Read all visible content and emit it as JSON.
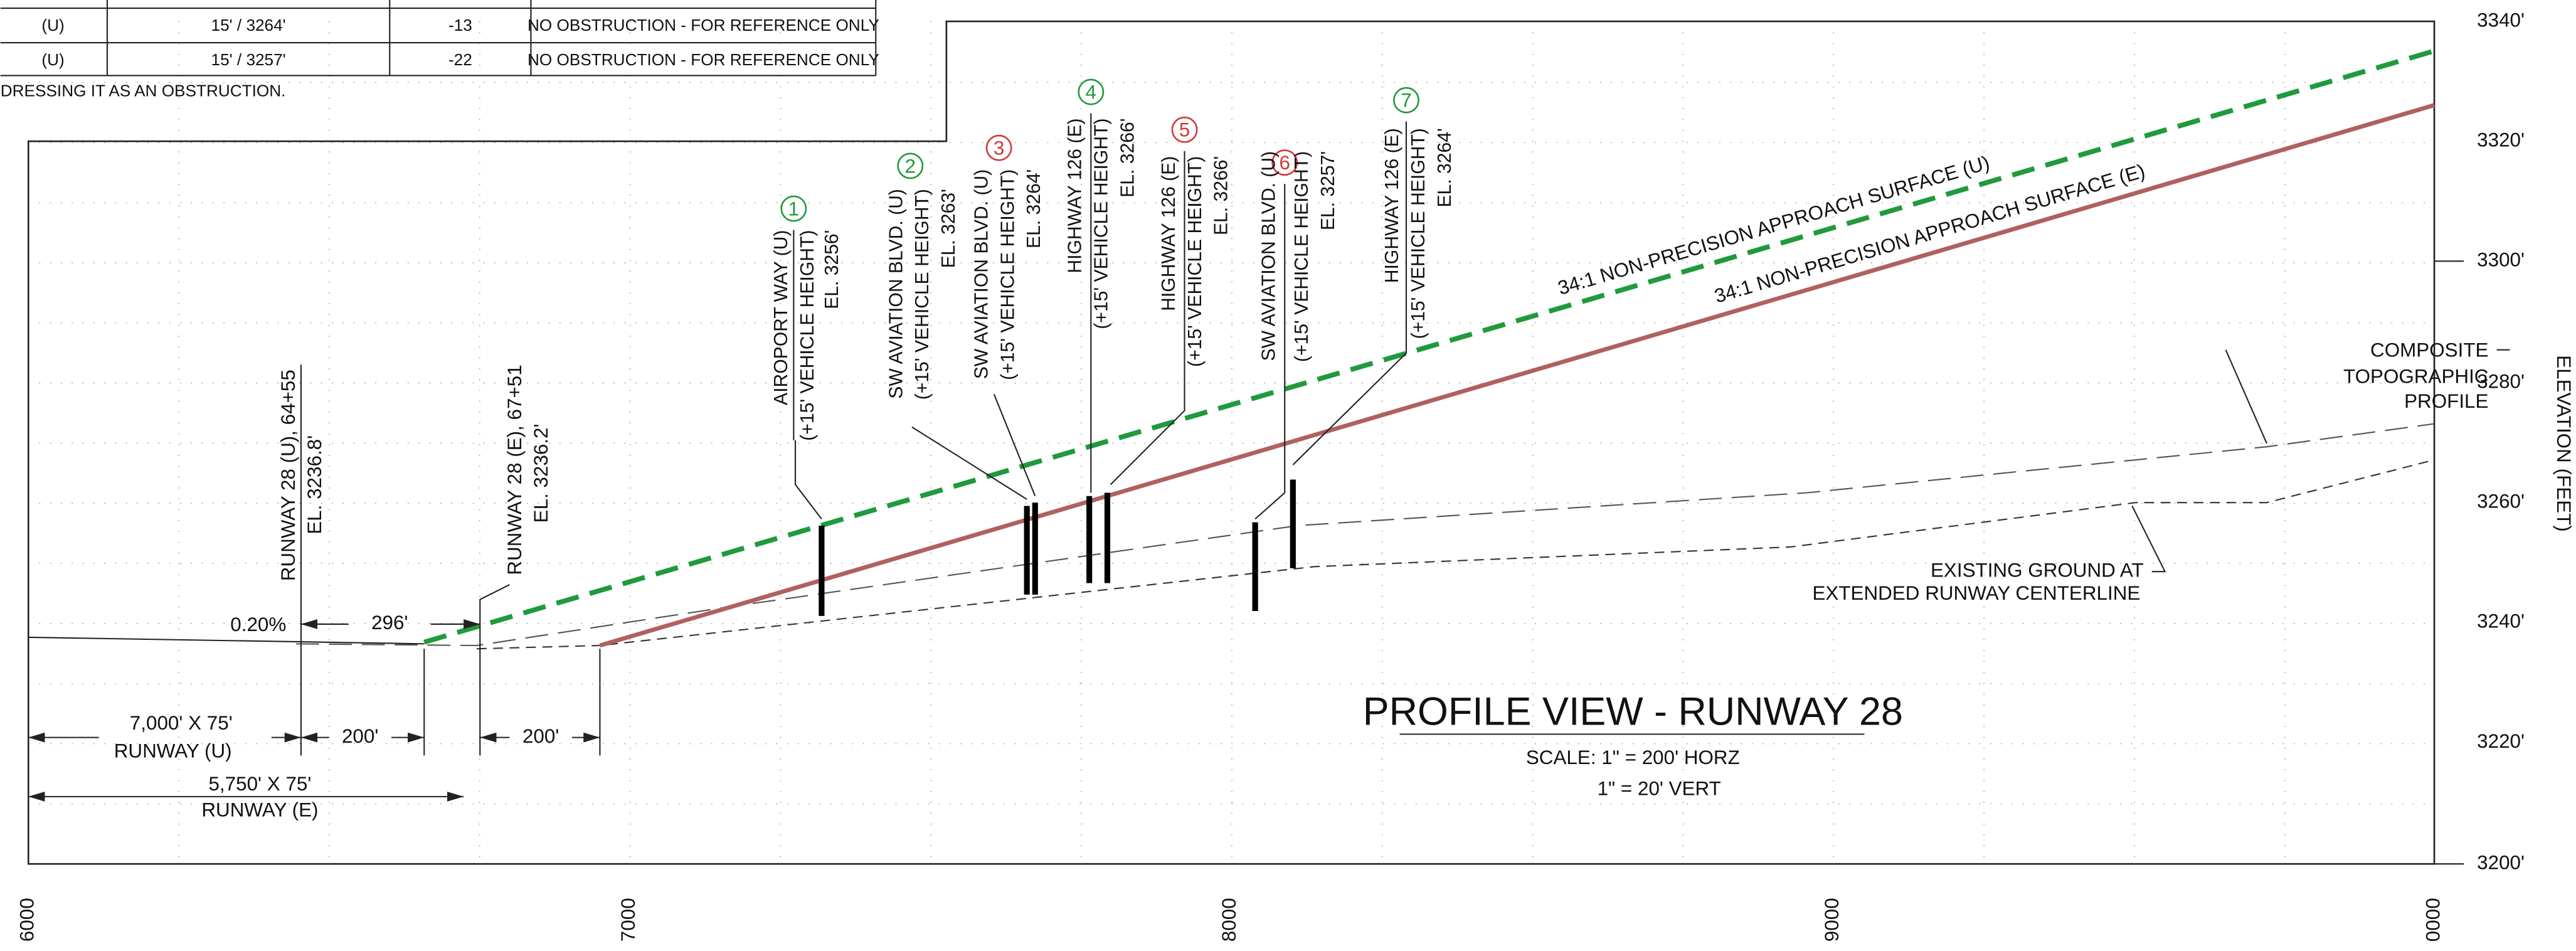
{
  "table": {
    "rows": [
      [
        "(U)",
        "15' / 3264'",
        "-13",
        "NO OBSTRUCTION - FOR REFERENCE ONLY"
      ],
      [
        "(U)",
        "15' / 3257'",
        "-22",
        "NO OBSTRUCTION - FOR REFERENCE ONLY"
      ]
    ],
    "note": "DRESSING IT AS AN OBSTRUCTION."
  },
  "axis": {
    "title": "ELEVATION (FEET)",
    "right_labels": [
      "3340'",
      "3320'",
      "3300'",
      "3280'",
      "3260'",
      "3240'",
      "3220'",
      "3200'"
    ],
    "bottom_labels": [
      "6000",
      "7000",
      "8000",
      "9000",
      "0000"
    ]
  },
  "obstructions": [
    {
      "number": "1",
      "lines": [
        "AIROPORT WAY (U)",
        "(+15' VEHICLE HEIGHT)",
        "EL. 3256'"
      ]
    },
    {
      "number": "2",
      "lines": [
        "SW AVIATION BLVD. (U)",
        "(+15' VEHICLE HEIGHT)",
        "EL. 3263'"
      ]
    },
    {
      "number": "3",
      "lines": [
        "SW AVIATION BLVD. (U)",
        "(+15' VEHICLE HEIGHT)",
        "EL. 3264'"
      ]
    },
    {
      "number": "4",
      "lines": [
        "HIGHWAY 126 (E)",
        "(+15' VEHICLE HEIGHT)",
        "EL. 3266'"
      ]
    },
    {
      "number": "5",
      "lines": [
        "HIGHWAY 126 (E)",
        "(+15' VEHICLE HEIGHT)",
        "EL. 3266'"
      ]
    },
    {
      "number": "6",
      "lines": [
        "SW AVIATION BLVD. (U)",
        "(+15' VEHICLE HEIGHT)",
        "EL. 3257'"
      ]
    },
    {
      "number": "7",
      "lines": [
        "HIGHWAY 126 (E)",
        "(+15' VEHICLE HEIGHT)",
        "EL. 3264'"
      ]
    }
  ],
  "runways": [
    {
      "lines": [
        "RUNWAY 28 (U), 64+55",
        "EL. 3236.8'"
      ]
    },
    {
      "lines": [
        "RUNWAY 28 (E), 67+51",
        "EL. 3236.2'"
      ]
    }
  ],
  "dimensions": {
    "slope": "0.20%",
    "offset": "296'",
    "u_length": [
      "7,000' X 75'",
      "RUNWAY (U)"
    ],
    "u_extension": "200'",
    "e_extension": "200'",
    "e_length": [
      "5,750' X 75'",
      "RUNWAY (E)"
    ]
  },
  "surfaces": [
    "34:1 NON-PRECISION APPROACH SURFACE (U)",
    "34:1 NON-PRECISION APPROACH SURFACE (E)"
  ],
  "annotations": {
    "composite": [
      "COMPOSITE",
      "TOPOGRAPHIC",
      "PROFILE"
    ],
    "existing": [
      "EXISTING GROUND AT",
      "EXTENDED RUNWAY CENTERLINE"
    ]
  },
  "title": "PROFILE VIEW - RUNWAY 28",
  "scale": [
    "SCALE: 1\" = 200' HORZ",
    "1\" = 20' VERT"
  ]
}
